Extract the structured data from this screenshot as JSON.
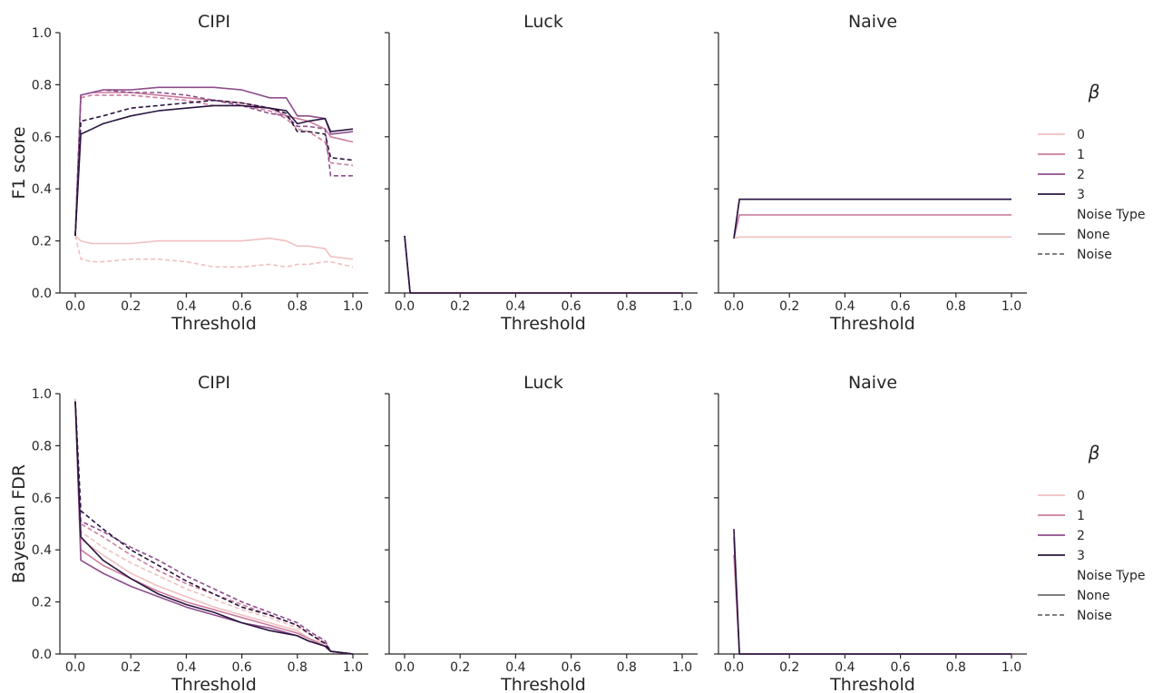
{
  "colors": {
    "beta_0": "#efc0c0",
    "beta_1": "#cc7d9e",
    "beta_2": "#8e4e8c",
    "beta_3": "#2a1540",
    "legend_noise_line": "#555555"
  },
  "legend": {
    "title": "β",
    "hue_entries": [
      "0",
      "1",
      "2",
      "3"
    ],
    "style_title": "Noise Type",
    "style_entries": [
      "None",
      "Noise"
    ]
  },
  "chart_data": [
    {
      "type": "line",
      "title": "CIPI",
      "xlabel": "Threshold",
      "ylabel": "F1 score",
      "xlim": [
        0.0,
        1.0
      ],
      "ylim": [
        0.0,
        1.0
      ],
      "xticks": [
        "0.0",
        "0.2",
        "0.4",
        "0.6",
        "0.8",
        "1.0"
      ],
      "yticks": [
        "0.0",
        "0.2",
        "0.4",
        "0.6",
        "0.8",
        "1.0"
      ],
      "grid": false,
      "series": [
        {
          "name": "0",
          "noise": "None",
          "x": [
            0.0,
            0.02,
            0.06,
            0.1,
            0.2,
            0.3,
            0.4,
            0.5,
            0.6,
            0.7,
            0.76,
            0.8,
            0.84,
            0.9,
            0.92,
            1.0
          ],
          "y": [
            0.22,
            0.2,
            0.19,
            0.19,
            0.19,
            0.2,
            0.2,
            0.2,
            0.2,
            0.21,
            0.2,
            0.18,
            0.18,
            0.17,
            0.14,
            0.13
          ]
        },
        {
          "name": "0",
          "noise": "Noise",
          "x": [
            0.0,
            0.02,
            0.06,
            0.1,
            0.2,
            0.3,
            0.4,
            0.5,
            0.6,
            0.7,
            0.76,
            0.8,
            0.84,
            0.9,
            0.92,
            1.0
          ],
          "y": [
            0.22,
            0.13,
            0.12,
            0.12,
            0.13,
            0.13,
            0.12,
            0.1,
            0.1,
            0.11,
            0.1,
            0.11,
            0.11,
            0.12,
            0.12,
            0.1
          ]
        },
        {
          "name": "1",
          "noise": "None",
          "x": [
            0.0,
            0.02,
            0.06,
            0.1,
            0.2,
            0.3,
            0.4,
            0.5,
            0.6,
            0.7,
            0.76,
            0.8,
            0.84,
            0.9,
            0.92,
            1.0
          ],
          "y": [
            0.22,
            0.76,
            0.77,
            0.77,
            0.77,
            0.76,
            0.75,
            0.74,
            0.73,
            0.71,
            0.68,
            0.67,
            0.66,
            0.63,
            0.6,
            0.58
          ]
        },
        {
          "name": "1",
          "noise": "Noise",
          "x": [
            0.0,
            0.02,
            0.06,
            0.1,
            0.2,
            0.3,
            0.4,
            0.5,
            0.6,
            0.7,
            0.76,
            0.8,
            0.84,
            0.9,
            0.92,
            1.0
          ],
          "y": [
            0.22,
            0.75,
            0.76,
            0.76,
            0.76,
            0.75,
            0.74,
            0.72,
            0.72,
            0.7,
            0.67,
            0.63,
            0.62,
            0.58,
            0.5,
            0.49
          ]
        },
        {
          "name": "2",
          "noise": "None",
          "x": [
            0.0,
            0.02,
            0.06,
            0.1,
            0.2,
            0.3,
            0.4,
            0.5,
            0.6,
            0.7,
            0.76,
            0.8,
            0.84,
            0.9,
            0.92,
            1.0
          ],
          "y": [
            0.22,
            0.76,
            0.77,
            0.78,
            0.78,
            0.79,
            0.79,
            0.79,
            0.78,
            0.75,
            0.75,
            0.68,
            0.68,
            0.67,
            0.61,
            0.62
          ]
        },
        {
          "name": "2",
          "noise": "Noise",
          "x": [
            0.0,
            0.02,
            0.06,
            0.1,
            0.2,
            0.3,
            0.4,
            0.5,
            0.6,
            0.7,
            0.76,
            0.8,
            0.84,
            0.9,
            0.92,
            1.0
          ],
          "y": [
            0.22,
            0.76,
            0.77,
            0.78,
            0.77,
            0.77,
            0.76,
            0.74,
            0.72,
            0.69,
            0.68,
            0.64,
            0.64,
            0.63,
            0.45,
            0.45
          ]
        },
        {
          "name": "3",
          "noise": "None",
          "x": [
            0.0,
            0.02,
            0.06,
            0.1,
            0.2,
            0.3,
            0.4,
            0.5,
            0.6,
            0.7,
            0.76,
            0.8,
            0.84,
            0.9,
            0.92,
            1.0
          ],
          "y": [
            0.22,
            0.61,
            0.63,
            0.65,
            0.68,
            0.7,
            0.71,
            0.72,
            0.72,
            0.71,
            0.7,
            0.65,
            0.66,
            0.67,
            0.62,
            0.63
          ]
        },
        {
          "name": "3",
          "noise": "Noise",
          "x": [
            0.0,
            0.02,
            0.06,
            0.1,
            0.2,
            0.3,
            0.4,
            0.5,
            0.6,
            0.7,
            0.76,
            0.8,
            0.84,
            0.9,
            0.92,
            1.0
          ],
          "y": [
            0.22,
            0.66,
            0.67,
            0.68,
            0.71,
            0.72,
            0.73,
            0.74,
            0.73,
            0.71,
            0.69,
            0.62,
            0.62,
            0.61,
            0.52,
            0.51
          ]
        }
      ]
    },
    {
      "type": "line",
      "title": "Luck",
      "xlabel": "Threshold",
      "ylabel": "",
      "xlim": [
        0.0,
        1.0
      ],
      "ylim": [
        0.0,
        1.0
      ],
      "xticks": [
        "0.0",
        "0.2",
        "0.4",
        "0.6",
        "0.8",
        "1.0"
      ],
      "yticks": [],
      "grid": false,
      "series": [
        {
          "name": "0",
          "noise": "None",
          "x": [
            0.0,
            0.02,
            1.0
          ],
          "y": [
            0.22,
            0.0,
            0.0
          ]
        },
        {
          "name": "1",
          "noise": "None",
          "x": [
            0.0,
            0.02,
            1.0
          ],
          "y": [
            0.22,
            0.0,
            0.0
          ]
        },
        {
          "name": "2",
          "noise": "None",
          "x": [
            0.0,
            0.02,
            1.0
          ],
          "y": [
            0.22,
            0.0,
            0.0
          ]
        },
        {
          "name": "3",
          "noise": "None",
          "x": [
            0.0,
            0.02,
            1.0
          ],
          "y": [
            0.22,
            0.0,
            0.0
          ]
        }
      ]
    },
    {
      "type": "line",
      "title": "Naive",
      "xlabel": "Threshold",
      "ylabel": "",
      "xlim": [
        0.0,
        1.0
      ],
      "ylim": [
        0.0,
        1.0
      ],
      "xticks": [
        "0.0",
        "0.2",
        "0.4",
        "0.6",
        "0.8",
        "1.0"
      ],
      "yticks": [],
      "grid": false,
      "series": [
        {
          "name": "0",
          "noise": "None",
          "x": [
            0.0,
            0.02,
            1.0
          ],
          "y": [
            0.21,
            0.215,
            0.215
          ]
        },
        {
          "name": "1",
          "noise": "None",
          "x": [
            0.0,
            0.02,
            1.0
          ],
          "y": [
            0.21,
            0.3,
            0.3
          ]
        },
        {
          "name": "2",
          "noise": "None",
          "x": [
            0.0,
            0.02,
            1.0
          ],
          "y": [
            0.21,
            0.36,
            0.36
          ]
        },
        {
          "name": "3",
          "noise": "None",
          "x": [
            0.0,
            0.02,
            1.0
          ],
          "y": [
            0.21,
            0.36,
            0.36
          ]
        }
      ]
    },
    {
      "type": "line",
      "title": "CIPI",
      "xlabel": "Threshold",
      "ylabel": "Bayesian FDR",
      "xlim": [
        0.0,
        1.0
      ],
      "ylim": [
        0.0,
        1.0
      ],
      "xticks": [
        "0.0",
        "0.2",
        "0.4",
        "0.6",
        "0.8",
        "1.0"
      ],
      "yticks": [
        "0.0",
        "0.2",
        "0.4",
        "0.6",
        "0.8",
        "1.0"
      ],
      "grid": false,
      "series": [
        {
          "name": "0",
          "noise": "None",
          "x": [
            0.0,
            0.02,
            0.1,
            0.2,
            0.3,
            0.4,
            0.5,
            0.6,
            0.7,
            0.8,
            0.84,
            0.9,
            0.92,
            1.0
          ],
          "y": [
            0.98,
            0.44,
            0.38,
            0.31,
            0.26,
            0.22,
            0.18,
            0.15,
            0.12,
            0.09,
            0.06,
            0.04,
            0.01,
            0.0
          ]
        },
        {
          "name": "0",
          "noise": "Noise",
          "x": [
            0.0,
            0.02,
            0.1,
            0.2,
            0.3,
            0.4,
            0.5,
            0.6,
            0.7,
            0.8,
            0.84,
            0.9,
            0.92,
            1.0
          ],
          "y": [
            0.98,
            0.47,
            0.41,
            0.35,
            0.3,
            0.25,
            0.21,
            0.17,
            0.14,
            0.1,
            0.08,
            0.05,
            0.01,
            0.0
          ]
        },
        {
          "name": "1",
          "noise": "None",
          "x": [
            0.0,
            0.02,
            0.1,
            0.2,
            0.3,
            0.4,
            0.5,
            0.6,
            0.7,
            0.8,
            0.84,
            0.9,
            0.92,
            1.0
          ],
          "y": [
            0.97,
            0.4,
            0.34,
            0.29,
            0.24,
            0.2,
            0.17,
            0.14,
            0.11,
            0.08,
            0.06,
            0.03,
            0.01,
            0.0
          ]
        },
        {
          "name": "1",
          "noise": "Noise",
          "x": [
            0.0,
            0.02,
            0.1,
            0.2,
            0.3,
            0.4,
            0.5,
            0.6,
            0.7,
            0.8,
            0.84,
            0.9,
            0.92,
            1.0
          ],
          "y": [
            0.97,
            0.5,
            0.45,
            0.38,
            0.32,
            0.27,
            0.23,
            0.19,
            0.15,
            0.11,
            0.08,
            0.04,
            0.01,
            0.0
          ]
        },
        {
          "name": "2",
          "noise": "None",
          "x": [
            0.0,
            0.02,
            0.1,
            0.2,
            0.3,
            0.4,
            0.5,
            0.6,
            0.7,
            0.8,
            0.84,
            0.9,
            0.92,
            1.0
          ],
          "y": [
            0.97,
            0.36,
            0.31,
            0.26,
            0.22,
            0.18,
            0.15,
            0.12,
            0.1,
            0.07,
            0.05,
            0.03,
            0.01,
            0.0
          ]
        },
        {
          "name": "2",
          "noise": "Noise",
          "x": [
            0.0,
            0.02,
            0.1,
            0.2,
            0.3,
            0.4,
            0.5,
            0.6,
            0.7,
            0.8,
            0.84,
            0.9,
            0.92,
            1.0
          ],
          "y": [
            0.97,
            0.51,
            0.47,
            0.41,
            0.36,
            0.3,
            0.25,
            0.2,
            0.16,
            0.12,
            0.09,
            0.05,
            0.01,
            0.0
          ]
        },
        {
          "name": "3",
          "noise": "None",
          "x": [
            0.0,
            0.02,
            0.1,
            0.2,
            0.3,
            0.4,
            0.5,
            0.6,
            0.7,
            0.8,
            0.84,
            0.9,
            0.92,
            1.0
          ],
          "y": [
            0.97,
            0.45,
            0.36,
            0.29,
            0.23,
            0.19,
            0.16,
            0.12,
            0.09,
            0.07,
            0.05,
            0.03,
            0.01,
            0.0
          ]
        },
        {
          "name": "3",
          "noise": "Noise",
          "x": [
            0.0,
            0.02,
            0.1,
            0.2,
            0.3,
            0.4,
            0.5,
            0.6,
            0.7,
            0.8,
            0.84,
            0.9,
            0.92,
            1.0
          ],
          "y": [
            0.97,
            0.55,
            0.48,
            0.4,
            0.34,
            0.28,
            0.23,
            0.18,
            0.15,
            0.11,
            0.08,
            0.04,
            0.01,
            0.0
          ]
        }
      ]
    },
    {
      "type": "line",
      "title": "Luck",
      "xlabel": "Threshold",
      "ylabel": "",
      "xlim": [
        0.0,
        1.0
      ],
      "ylim": [
        0.0,
        1.0
      ],
      "xticks": [
        "0.0",
        "0.2",
        "0.4",
        "0.6",
        "0.8",
        "1.0"
      ],
      "yticks": [],
      "grid": false,
      "series": []
    },
    {
      "type": "line",
      "title": "Naive",
      "xlabel": "Threshold",
      "ylabel": "",
      "xlim": [
        0.0,
        1.0
      ],
      "ylim": [
        0.0,
        1.0
      ],
      "xticks": [
        "0.0",
        "0.2",
        "0.4",
        "0.6",
        "0.8",
        "1.0"
      ],
      "yticks": [],
      "grid": false,
      "series": [
        {
          "name": "1",
          "noise": "None",
          "x": [
            0.0,
            0.02,
            1.0
          ],
          "y": [
            0.38,
            0.0,
            0.0
          ]
        },
        {
          "name": "2",
          "noise": "None",
          "x": [
            0.0,
            0.02,
            1.0
          ],
          "y": [
            0.45,
            0.0,
            0.0
          ]
        },
        {
          "name": "3",
          "noise": "None",
          "x": [
            0.0,
            0.02,
            1.0
          ],
          "y": [
            0.48,
            0.0,
            0.0
          ]
        }
      ]
    }
  ]
}
